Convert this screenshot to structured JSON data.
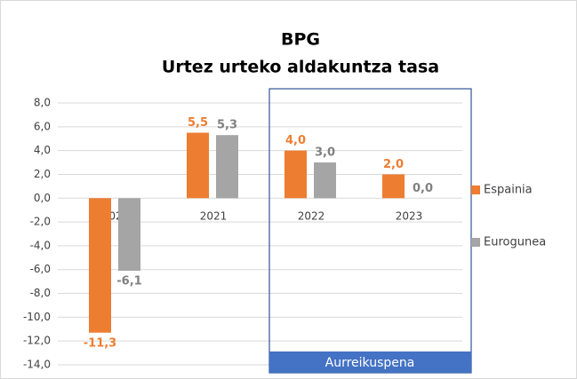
{
  "chart_data": {
    "type": "bar",
    "title": "BPG",
    "subtitle": "Urtez urteko aldakuntza tasa",
    "categories": [
      "2020",
      "2021",
      "2022",
      "2023"
    ],
    "series": [
      {
        "name": "Espainia",
        "color": "#ed7d31",
        "values": [
          -11.3,
          5.5,
          4.0,
          2.0
        ],
        "value_labels": [
          "-11,3",
          "5,5",
          "4,0",
          "2,0"
        ]
      },
      {
        "name": "Eurogunea",
        "color": "#a5a5a5",
        "values": [
          -6.1,
          5.3,
          3.0,
          0.0
        ],
        "value_labels": [
          "-6,1",
          "5,3",
          "3,0",
          "0,0"
        ]
      }
    ],
    "ylim": [
      -14,
      8
    ],
    "yticks": [
      {
        "value": -14,
        "label": "-14,0"
      },
      {
        "value": -12,
        "label": "-12,0"
      },
      {
        "value": -10,
        "label": "-10,0"
      },
      {
        "value": -8,
        "label": "-8,0"
      },
      {
        "value": -6,
        "label": "-6,0"
      },
      {
        "value": -4,
        "label": "-4,0"
      },
      {
        "value": -2,
        "label": "-2,0"
      },
      {
        "value": 0,
        "label": "0,0"
      },
      {
        "value": 2,
        "label": "2,0"
      },
      {
        "value": 4,
        "label": "4,0"
      },
      {
        "value": 6,
        "label": "6,0"
      },
      {
        "value": 8,
        "label": "8,0"
      }
    ],
    "grid": true,
    "legend": "right",
    "annotation": "Aurreikuspena"
  }
}
